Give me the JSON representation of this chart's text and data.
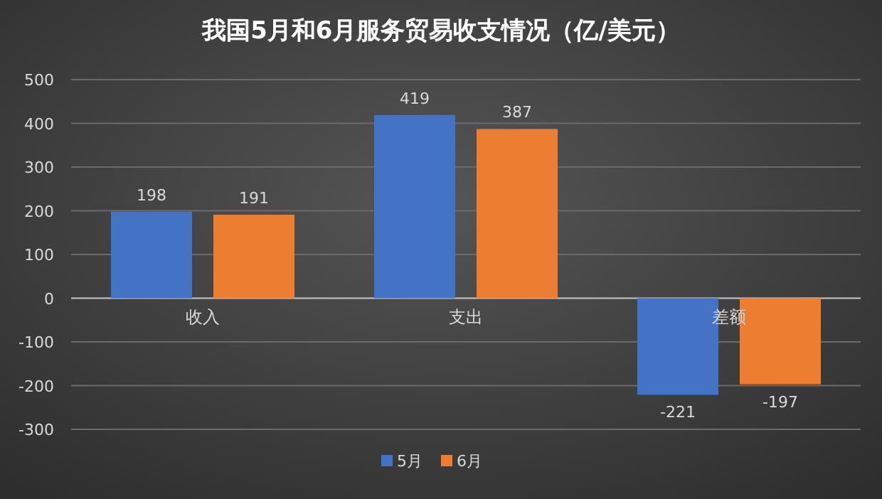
{
  "chart_data": {
    "type": "bar",
    "title": "我国5月和6月服务贸易收支情况（亿/美元）",
    "categories": [
      "收入",
      "支出",
      "差额"
    ],
    "series": [
      {
        "name": "5月",
        "color": "#4472c4",
        "values": [
          198,
          419,
          -221
        ]
      },
      {
        "name": "6月",
        "color": "#ed7d31",
        "values": [
          191,
          387,
          -197
        ]
      }
    ],
    "ylim": [
      -300,
      500
    ],
    "yticks": [
      -300,
      -200,
      -100,
      0,
      100,
      200,
      300,
      400,
      500
    ],
    "grid": "y",
    "legend": "bottom",
    "data_labels": true
  }
}
